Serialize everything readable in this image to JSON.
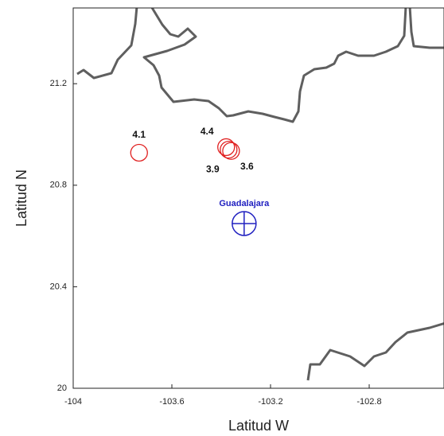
{
  "chart_data": {
    "type": "scatter",
    "x_label": "Latitud W",
    "y_label": "Latitud N",
    "xlim": [
      -104,
      -102.5
    ],
    "ylim": [
      20,
      21.5
    ],
    "xticks": [
      -104,
      -103.6,
      -103.2,
      -102.8
    ],
    "yticks": [
      20,
      20.4,
      20.8,
      21.2
    ],
    "series": [
      {
        "color": "#e02020",
        "x": [
          -103.733,
          -103.38,
          -103.37,
          -103.36
        ],
        "y": [
          20.928,
          20.95,
          20.94,
          20.935
        ],
        "magnitudes": [
          4.1,
          4.4,
          3.9,
          3.6
        ]
      },
      {
        "name": "Guadalajara",
        "color": "#2020c0",
        "x": [
          -103.307
        ],
        "y": [
          20.649
        ]
      }
    ]
  }
}
